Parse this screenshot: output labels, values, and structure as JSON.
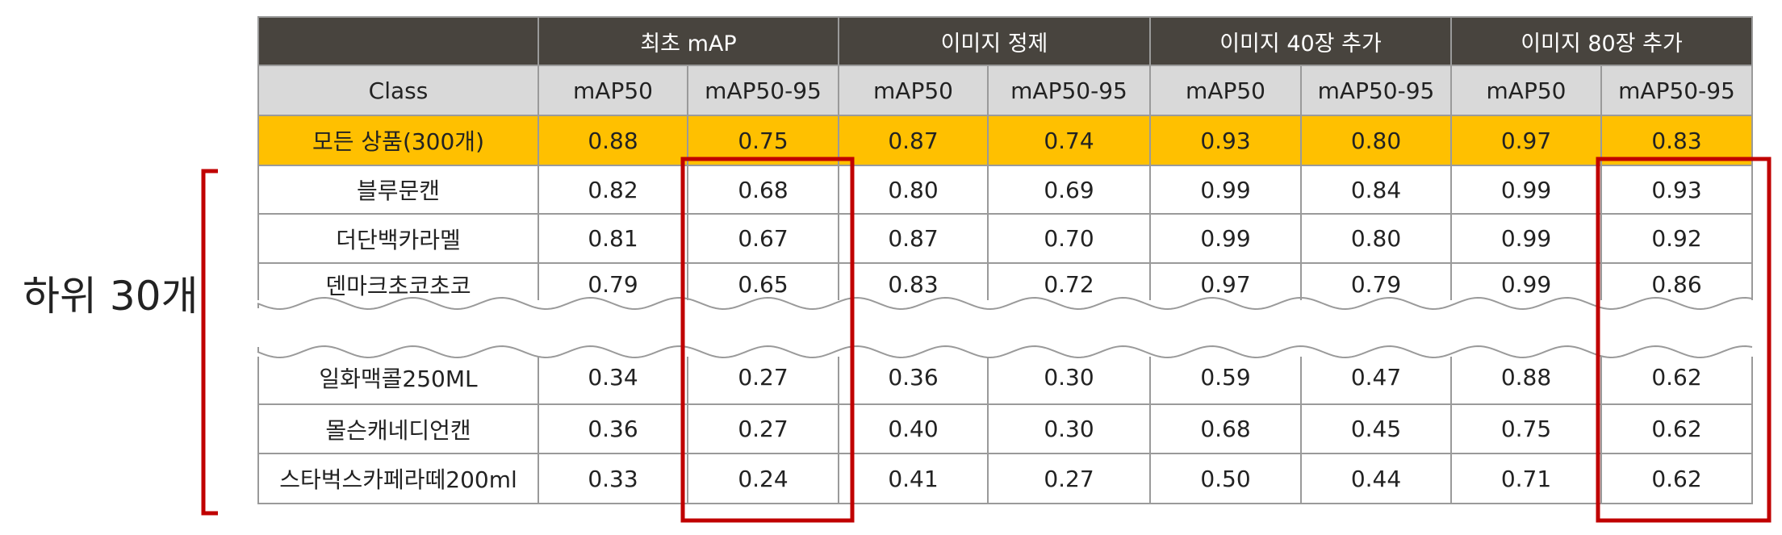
{
  "side_label": "하위 30개",
  "group_headers": [
    "최초 mAP",
    "이미지 정제",
    "이미지 40장 추가",
    "이미지 80장 추가"
  ],
  "class_header": "Class",
  "metric_headers": [
    "mAP50",
    "mAP50-95",
    "mAP50",
    "mAP50-95",
    "mAP50",
    "mAP50-95",
    "mAP50",
    "mAP50-95"
  ],
  "summary_row": {
    "label": "모든 상품(300개)",
    "values": [
      "0.88",
      "0.75",
      "0.87",
      "0.74",
      "0.93",
      "0.80",
      "0.97",
      "0.83"
    ]
  },
  "rows_top": [
    {
      "label": "블루문캔",
      "values": [
        "0.82",
        "0.68",
        "0.80",
        "0.69",
        "0.99",
        "0.84",
        "0.99",
        "0.93"
      ]
    },
    {
      "label": "더단백카라멜",
      "values": [
        "0.81",
        "0.67",
        "0.87",
        "0.70",
        "0.99",
        "0.80",
        "0.99",
        "0.92"
      ]
    },
    {
      "label": "덴마크초코초코",
      "values": [
        "0.79",
        "0.65",
        "0.83",
        "0.72",
        "0.97",
        "0.79",
        "0.99",
        "0.86"
      ]
    }
  ],
  "rows_bottom": [
    {
      "label": "일화맥콜250ML",
      "values": [
        "0.34",
        "0.27",
        "0.36",
        "0.30",
        "0.59",
        "0.47",
        "0.88",
        "0.62"
      ]
    },
    {
      "label": "몰슨캐네디언캔",
      "values": [
        "0.36",
        "0.27",
        "0.40",
        "0.30",
        "0.68",
        "0.45",
        "0.75",
        "0.62"
      ]
    },
    {
      "label": "스타벅스카페라떼200ml",
      "values": [
        "0.33",
        "0.24",
        "0.41",
        "0.27",
        "0.50",
        "0.44",
        "0.71",
        "0.62"
      ]
    }
  ],
  "colors": {
    "header_dark": "#48443e",
    "header_light": "#d9d9d9",
    "summary_highlight": "#ffc000",
    "callout_red": "#c00000"
  }
}
